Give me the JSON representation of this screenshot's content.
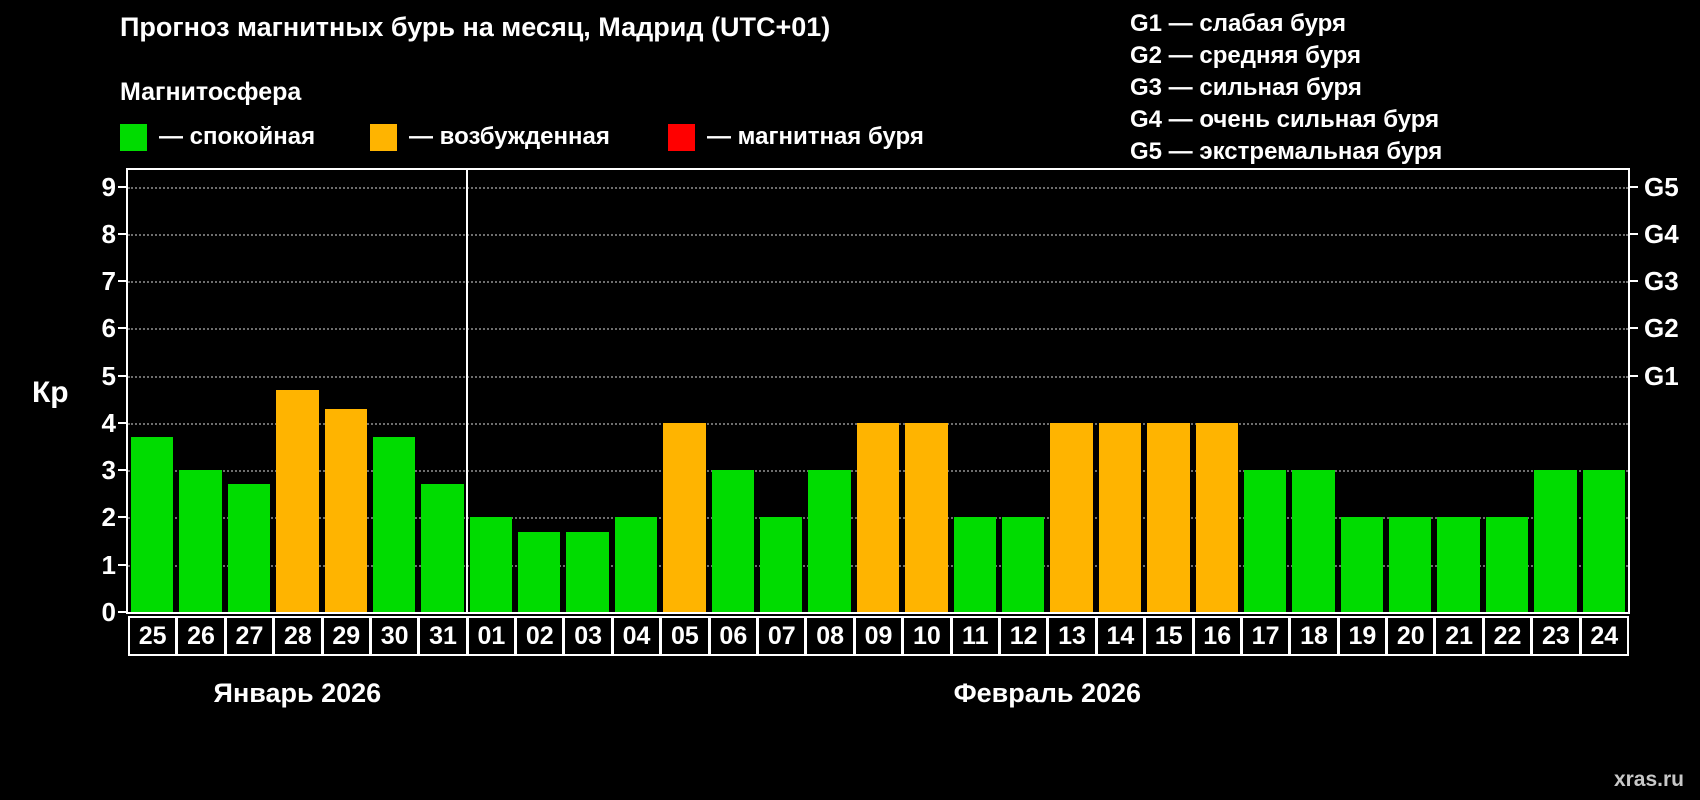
{
  "title": "Прогноз магнитных бурь на месяц, Мадрид (UTC+01)",
  "subtitle": "Магнитосфера",
  "legend": {
    "items": [
      {
        "state": "quiet",
        "label": "— спокойная",
        "color": "#00dc00"
      },
      {
        "state": "excited",
        "label": "— возбужденная",
        "color": "#ffb400"
      },
      {
        "state": "storm",
        "label": "— магнитная буря",
        "color": "#ff0000"
      }
    ]
  },
  "g_legend": [
    "G1 — слабая буря",
    "G2 — средняя буря",
    "G3 — сильная буря",
    "G4 — очень сильная буря",
    "G5 — экстремальная буря"
  ],
  "watermark": "xras.ru",
  "chart_data": {
    "type": "bar",
    "title": "Прогноз магнитных бурь на месяц, Мадрид (UTC+01)",
    "ylabel": "Кр",
    "ylim": [
      0,
      9
    ],
    "yticks": [
      0,
      1,
      2,
      3,
      4,
      5,
      6,
      7,
      8,
      9
    ],
    "grid": true,
    "right_axis": [
      {
        "label": "G1",
        "value": 5
      },
      {
        "label": "G2",
        "value": 6
      },
      {
        "label": "G3",
        "value": 7
      },
      {
        "label": "G4",
        "value": 8
      },
      {
        "label": "G5",
        "value": 9
      }
    ],
    "months": [
      {
        "label": "Январь 2026",
        "days": 7
      },
      {
        "label": "Февраль 2026",
        "days": 24
      }
    ],
    "categories": [
      "25",
      "26",
      "27",
      "28",
      "29",
      "30",
      "31",
      "01",
      "02",
      "03",
      "04",
      "05",
      "06",
      "07",
      "08",
      "09",
      "10",
      "11",
      "12",
      "13",
      "14",
      "15",
      "16",
      "17",
      "18",
      "19",
      "20",
      "21",
      "22",
      "23",
      "24"
    ],
    "values": [
      3.7,
      3.0,
      2.7,
      4.7,
      4.3,
      3.7,
      2.7,
      2.0,
      1.7,
      1.7,
      2.0,
      4.0,
      3.0,
      2.0,
      3.0,
      4.0,
      4.0,
      2.0,
      2.0,
      4.0,
      4.0,
      4.0,
      4.0,
      3.0,
      3.0,
      2.0,
      2.0,
      2.0,
      2.0,
      3.0,
      3.0
    ],
    "states": [
      "quiet",
      "quiet",
      "quiet",
      "excited",
      "excited",
      "quiet",
      "quiet",
      "quiet",
      "quiet",
      "quiet",
      "quiet",
      "excited",
      "quiet",
      "quiet",
      "quiet",
      "excited",
      "excited",
      "quiet",
      "quiet",
      "excited",
      "excited",
      "excited",
      "excited",
      "quiet",
      "quiet",
      "quiet",
      "quiet",
      "quiet",
      "quiet",
      "quiet",
      "quiet"
    ],
    "colors_by_state": {
      "quiet": "#00dc00",
      "excited": "#ffb400",
      "storm": "#ff0000"
    }
  }
}
